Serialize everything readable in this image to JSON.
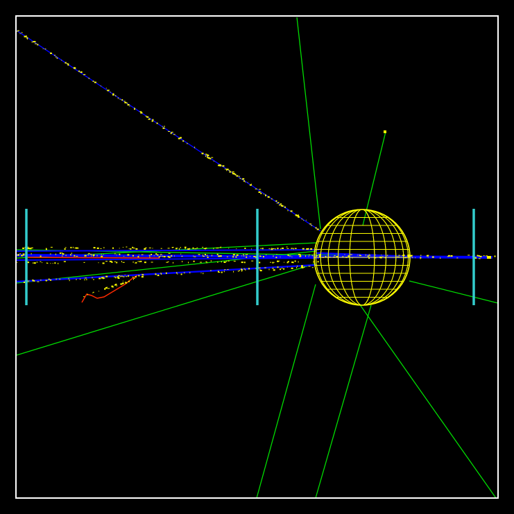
{
  "colors": {
    "background": "#000000",
    "frame": "#ffffff",
    "wireframe": "#ffff00",
    "hits": "#ffff00",
    "track_blue": "#0000ff",
    "track_red": "#ff2a00",
    "ray_green": "#00dd00",
    "detector_plane": "#33cccc"
  },
  "scene": {
    "frame_count": 1,
    "detector_plane_count": 3,
    "sphere_count": 1
  }
}
